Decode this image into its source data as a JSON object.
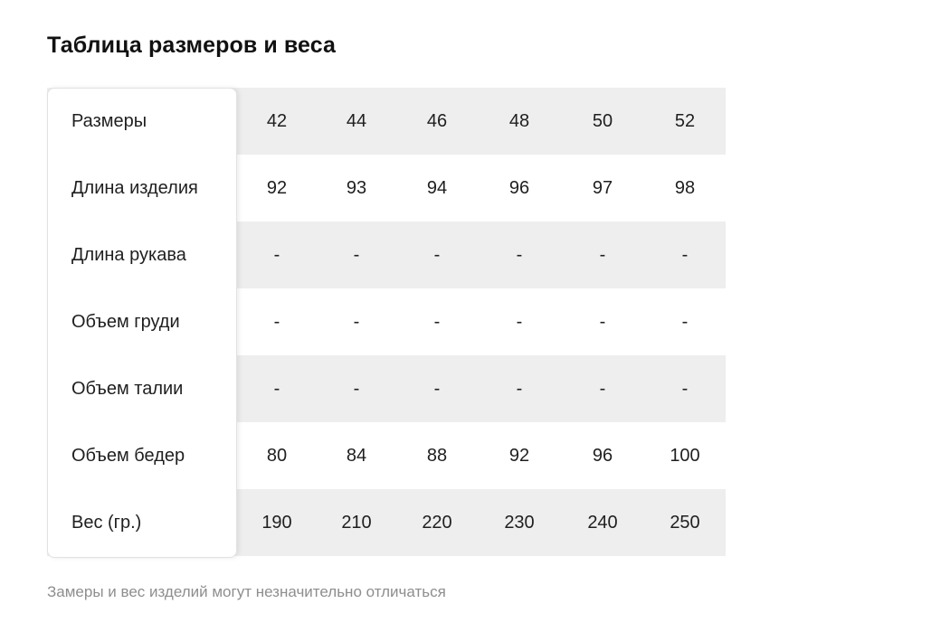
{
  "title": "Таблица размеров и веса",
  "table": {
    "rows": [
      {
        "label": "Размеры",
        "values": [
          "42",
          "44",
          "46",
          "48",
          "50",
          "52"
        ]
      },
      {
        "label": "Длина изделия",
        "values": [
          "92",
          "93",
          "94",
          "96",
          "97",
          "98"
        ]
      },
      {
        "label": "Длина рукава",
        "values": [
          "-",
          "-",
          "-",
          "-",
          "-",
          "-"
        ]
      },
      {
        "label": "Объем груди",
        "values": [
          "-",
          "-",
          "-",
          "-",
          "-",
          "-"
        ]
      },
      {
        "label": "Объем талии",
        "values": [
          "-",
          "-",
          "-",
          "-",
          "-",
          "-"
        ]
      },
      {
        "label": "Объем бедер",
        "values": [
          "80",
          "84",
          "88",
          "92",
          "96",
          "100"
        ]
      },
      {
        "label": "Вес (гр.)",
        "values": [
          "190",
          "210",
          "220",
          "230",
          "240",
          "250"
        ]
      }
    ]
  },
  "note": "Замеры и вес изделий могут незначительно отличаться",
  "colors": {
    "stripe": "#eeeeee",
    "note": "#8e8e8e"
  }
}
